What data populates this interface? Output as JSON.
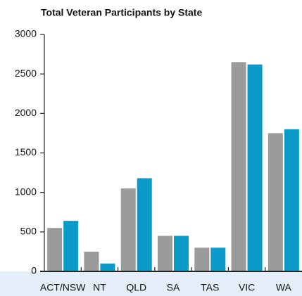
{
  "chart_data": {
    "type": "bar",
    "title": "Total Veteran Participants by State",
    "categories": [
      "ACT/NSW",
      "NT",
      "QLD",
      "SA",
      "TAS",
      "VIC",
      "WA"
    ],
    "series": [
      {
        "color": "#9b9b9b",
        "values": [
          550,
          250,
          1050,
          450,
          300,
          2650,
          1750
        ]
      },
      {
        "color": "#0a9bc8",
        "values": [
          640,
          100,
          1180,
          450,
          300,
          2620,
          1800
        ]
      }
    ],
    "ylim": [
      0,
      3000
    ],
    "yticks": [
      0,
      500,
      1000,
      1500,
      2000,
      2500,
      3000
    ],
    "grid": false
  }
}
